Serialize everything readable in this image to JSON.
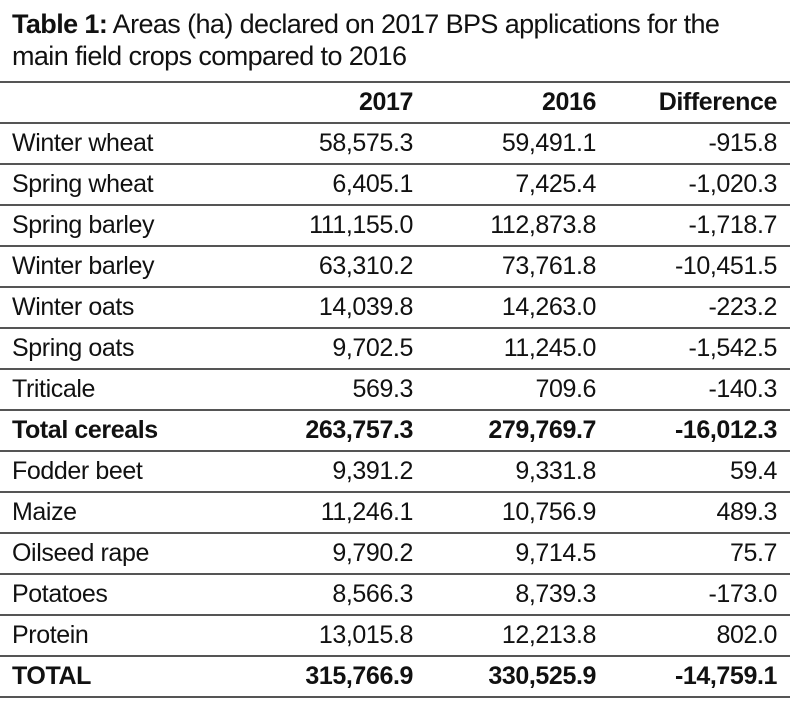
{
  "title": {
    "prefix": "Table 1:",
    "text": "Areas (ha) declared on 2017 BPS applications for the main field crops compared to 2016"
  },
  "columns": [
    "",
    "2017",
    "2016",
    "Difference"
  ],
  "rows": [
    {
      "label": "Winter wheat",
      "y2017": "58,575.3",
      "y2016": "59,491.1",
      "diff": "-915.8"
    },
    {
      "label": "Spring wheat",
      "y2017": "6,405.1",
      "y2016": "7,425.4",
      "diff": "-1,020.3"
    },
    {
      "label": "Spring barley",
      "y2017": "111,155.0",
      "y2016": "112,873.8",
      "diff": "-1,718.7"
    },
    {
      "label": "Winter barley",
      "y2017": "63,310.2",
      "y2016": "73,761.8",
      "diff": "-10,451.5"
    },
    {
      "label": "Winter oats",
      "y2017": "14,039.8",
      "y2016": "14,263.0",
      "diff": "-223.2"
    },
    {
      "label": "Spring oats",
      "y2017": "9,702.5",
      "y2016": "11,245.0",
      "diff": "-1,542.5"
    },
    {
      "label": "Triticale",
      "y2017": "569.3",
      "y2016": "709.6",
      "diff": "-140.3"
    },
    {
      "label": "Total cereals",
      "y2017": "263,757.3",
      "y2016": "279,769.7",
      "diff": "-16,012.3",
      "bold": true
    },
    {
      "label": "Fodder beet",
      "y2017": "9,391.2",
      "y2016": "9,331.8",
      "diff": "59.4"
    },
    {
      "label": "Maize",
      "y2017": "11,246.1",
      "y2016": "10,756.9",
      "diff": "489.3"
    },
    {
      "label": "Oilseed rape",
      "y2017": "9,790.2",
      "y2016": "9,714.5",
      "diff": "75.7"
    },
    {
      "label": "Potatoes",
      "y2017": "8,566.3",
      "y2016": "8,739.3",
      "diff": "-173.0"
    },
    {
      "label": "Protein",
      "y2017": "13,015.8",
      "y2016": "12,213.8",
      "diff": "802.0"
    },
    {
      "label": "TOTAL",
      "y2017": "315,766.9",
      "y2016": "330,525.9",
      "diff": "-14,759.1",
      "bold": true
    }
  ]
}
